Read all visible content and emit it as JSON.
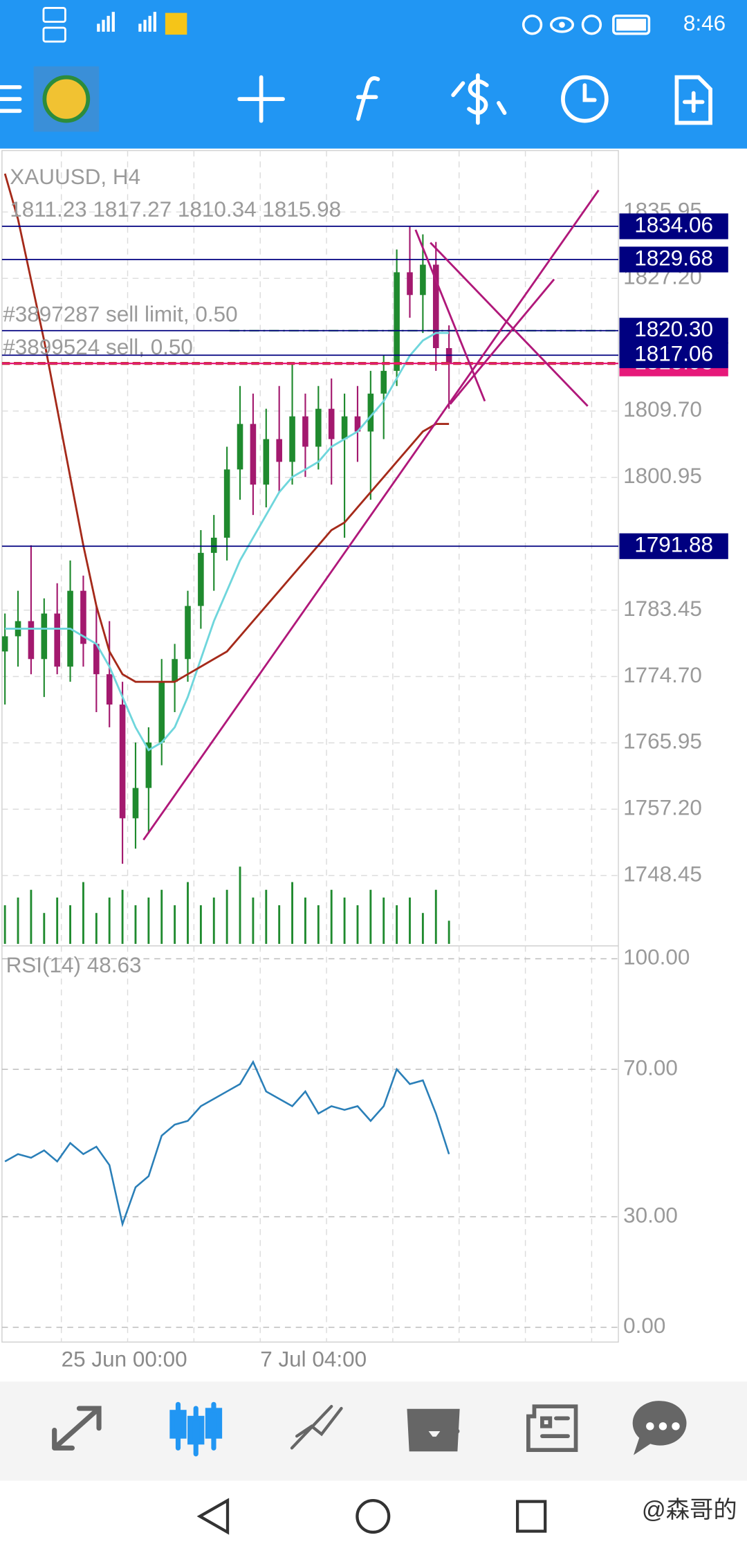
{
  "status_bar": {
    "time": "8:46"
  },
  "chart_data": [
    {
      "type": "candlestick",
      "title": "XAUUSD, H4",
      "ohlc_text": "1811.23 1817.27 1810.34 1815.98",
      "open": [
        1778,
        1780,
        1782,
        1777,
        1783,
        1776,
        1786,
        1779,
        1775,
        1771,
        1756,
        1760,
        1766,
        1774,
        1777,
        1784,
        1791,
        1793,
        1802,
        1808,
        1800,
        1806,
        1803,
        1809,
        1805,
        1810,
        1806,
        1809,
        1807,
        1812,
        1815,
        1828,
        1825,
        1829,
        1818
      ],
      "high": [
        1783,
        1786,
        1792,
        1785,
        1787,
        1790,
        1788,
        1784,
        1782,
        1774,
        1766,
        1768,
        1777,
        1779,
        1786,
        1794,
        1796,
        1805,
        1813,
        1812,
        1810,
        1813,
        1816,
        1812,
        1813,
        1814,
        1812,
        1813,
        1815,
        1817,
        1831,
        1834,
        1833,
        1832,
        1821
      ],
      "low": [
        1771,
        1776,
        1775,
        1772,
        1775,
        1774,
        1776,
        1770,
        1768,
        1750,
        1752,
        1754,
        1763,
        1770,
        1774,
        1781,
        1786,
        1790,
        1798,
        1796,
        1797,
        1799,
        1800,
        1801,
        1802,
        1800,
        1793,
        1803,
        1798,
        1806,
        1813,
        1822,
        1820,
        1815,
        1810
      ],
      "close": [
        1780,
        1782,
        1777,
        1783,
        1776,
        1786,
        1779,
        1775,
        1771,
        1756,
        1760,
        1766,
        1774,
        1777,
        1784,
        1791,
        1793,
        1802,
        1808,
        1800,
        1806,
        1803,
        1809,
        1805,
        1810,
        1806,
        1809,
        1807,
        1812,
        1815,
        1828,
        1825,
        1829,
        1818,
        1816
      ],
      "up_color": "#1f8a2e",
      "down_color": "#a3196e",
      "ma_fast": {
        "color": "#6fd6dc",
        "values": [
          1781,
          1781,
          1781,
          1781,
          1781,
          1781,
          1780,
          1779,
          1776,
          1772,
          1768,
          1765,
          1766,
          1768,
          1772,
          1777,
          1782,
          1786,
          1790,
          1793,
          1796,
          1799,
          1801,
          1802,
          1803,
          1805,
          1806,
          1807,
          1809,
          1811,
          1814,
          1817,
          1819,
          1820,
          1820
        ]
      },
      "ma_slow": {
        "color": "#a52a1a",
        "values": [
          1841,
          1835,
          1827,
          1819,
          1810,
          1801,
          1792,
          1784,
          1778,
          1775,
          1774,
          1774,
          1774,
          1774,
          1775,
          1776,
          1777,
          1778,
          1780,
          1782,
          1784,
          1786,
          1788,
          1790,
          1792,
          1794,
          1795,
          1797,
          1799,
          1801,
          1803,
          1805,
          1807,
          1808,
          1808
        ]
      },
      "volumes": {
        "color": "#1f8a2e",
        "values": [
          5,
          6,
          7,
          4,
          6,
          5,
          8,
          4,
          6,
          7,
          5,
          6,
          7,
          5,
          8,
          5,
          6,
          7,
          10,
          6,
          7,
          5,
          8,
          6,
          5,
          7,
          6,
          5,
          7,
          6,
          5,
          6,
          4,
          7,
          3
        ]
      },
      "ylim": [
        1739.18,
        1844.05
      ],
      "yticks": [
        1835.95,
        {
          "value": 1827.2,
          "label": "1827.20"
        },
        {
          "value": 1809.7,
          "label": "1809.70"
        },
        1800.95,
        1783.45,
        {
          "value": 1774.7,
          "label": "1774.70"
        },
        1765.95,
        {
          "value": 1757.2,
          "label": "1757.20"
        },
        1748.45
      ],
      "grid": true,
      "price_lines": [
        1834.06,
        1829.68,
        {
          "value": 1820.3,
          "label": "1820.30"
        },
        1817.06,
        1791.88
      ],
      "price_line_color": "#000080",
      "bid": {
        "value": 1815.98,
        "color": "#e6197a"
      },
      "orders": [
        {
          "label": "#3897287 sell limit, 0.50",
          "value": 1820.3,
          "color": "#1f8a2e"
        },
        {
          "label": "#3899524 sell, 0.50",
          "value": 1815.98,
          "color": "#c0392b"
        }
      ],
      "x_labels": [
        "25 Jun 00:00",
        "7 Jul 04:00"
      ]
    },
    {
      "type": "line",
      "title": "RSI(14) 48.63",
      "color": "#2a7fb8",
      "values": [
        45,
        47,
        46,
        48,
        45,
        50,
        47,
        49,
        44,
        28,
        38,
        41,
        52,
        55,
        56,
        60,
        62,
        64,
        66,
        72,
        64,
        62,
        60,
        64,
        58,
        60,
        59,
        60,
        56,
        60,
        70,
        66,
        67,
        58,
        47
      ],
      "ylim": [
        -4,
        103.5
      ],
      "yticks": [
        {
          "value": 100,
          "label": "100.00"
        },
        {
          "value": 70,
          "label": "70.00"
        },
        {
          "value": 30,
          "label": "30.00"
        },
        {
          "value": 0,
          "label": "0.00"
        }
      ],
      "grid": true
    }
  ],
  "watermark": "@森哥的"
}
